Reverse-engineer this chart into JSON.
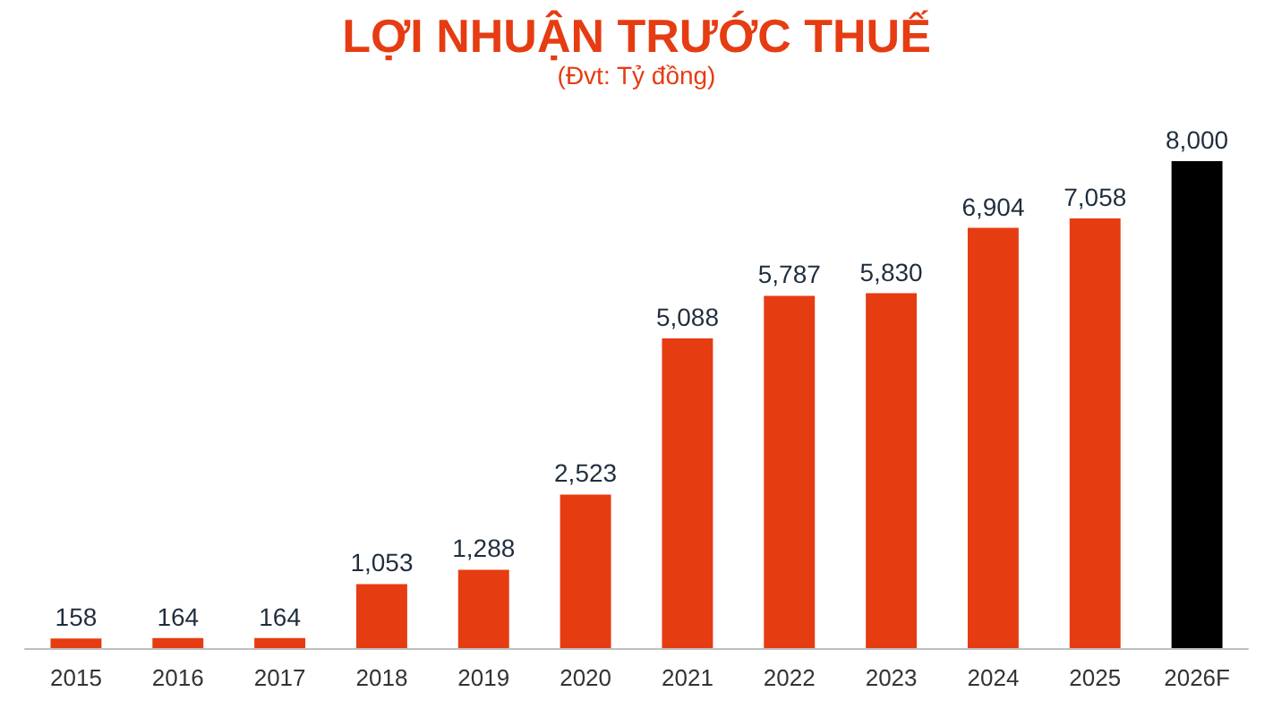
{
  "chart_data": {
    "type": "bar",
    "title": "LỢI NHUẬN TRƯỚC THUẾ",
    "subtitle": "(Đvt: Tỷ đồng)",
    "categories": [
      "2015",
      "2016",
      "2017",
      "2018",
      "2019",
      "2020",
      "2021",
      "2022",
      "2023",
      "2024",
      "2025",
      "2026F"
    ],
    "values": [
      158,
      164,
      164,
      1053,
      1288,
      2523,
      5088,
      5787,
      5830,
      6904,
      7058,
      8000
    ],
    "colors": [
      "#e63c12",
      "#e63c12",
      "#e63c12",
      "#e63c12",
      "#e63c12",
      "#e63c12",
      "#e63c12",
      "#e63c12",
      "#e63c12",
      "#e63c12",
      "#e63c12",
      "#000000"
    ],
    "value_labels": [
      "158",
      "164",
      "164",
      "1,053",
      "1,288",
      "2,523",
      "5,088",
      "5,787",
      "5,830",
      "6,904",
      "7,058",
      "8,000"
    ],
    "tick_labels": "x"
  }
}
